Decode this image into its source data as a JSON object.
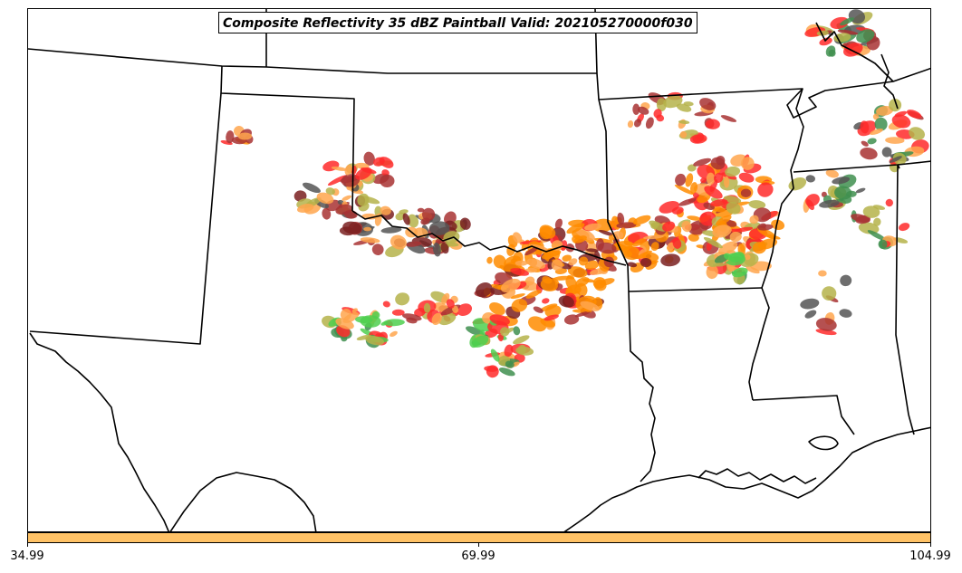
{
  "title": "Composite Reflectivity 35 dBZ Paintball Valid: 202105270000f030",
  "colorbar": {
    "color": "#ffc266",
    "ticks": [
      "34.99",
      "69.99",
      "104.99"
    ]
  },
  "colors": {
    "orange": "#ff8c00",
    "light_orange": "#ffa64d",
    "red": "#ff2a2a",
    "dark_red": "#a83232",
    "maroon": "#7a2020",
    "olive": "#b5b34a",
    "green": "#4fcf4f",
    "dark_green": "#3f8f4f",
    "gray": "#555555"
  }
}
